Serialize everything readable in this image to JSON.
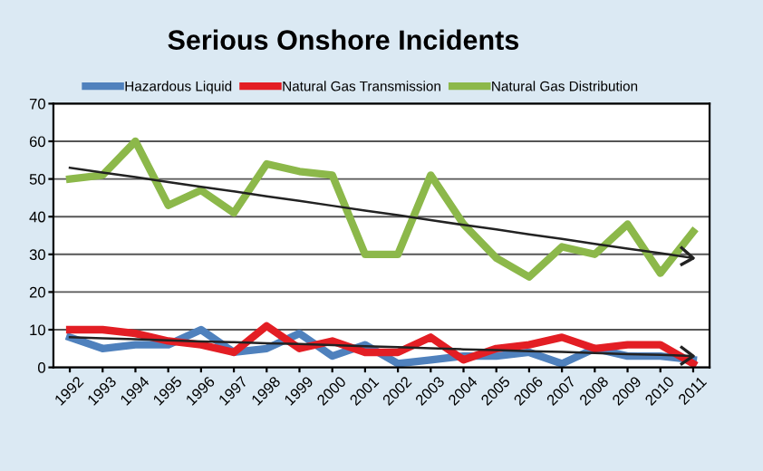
{
  "chart_data": {
    "type": "line",
    "title": "Serious Onshore Incidents",
    "categories": [
      "1992",
      "1993",
      "1994",
      "1995",
      "1996",
      "1997",
      "1998",
      "1999",
      "2000",
      "2001",
      "2002",
      "2003",
      "2004",
      "2005",
      "2006",
      "2007",
      "2008",
      "2009",
      "2010",
      "2011"
    ],
    "series": [
      {
        "name": "Hazardous Liquid",
        "color": "#4f81bd",
        "values": [
          8,
          5,
          6,
          6,
          10,
          4,
          5,
          9,
          3,
          6,
          1,
          2,
          3,
          3,
          4,
          1,
          5,
          3,
          3,
          2
        ]
      },
      {
        "name": "Natural Gas Transmission",
        "color": "#e31e24",
        "values": [
          10,
          10,
          9,
          7,
          6,
          4,
          11,
          5,
          7,
          4,
          4,
          8,
          2,
          5,
          6,
          8,
          5,
          6,
          6,
          1
        ]
      },
      {
        "name": "Natural Gas Distribution",
        "color": "#8cb84a",
        "values": [
          50,
          51,
          60,
          43,
          47,
          41,
          54,
          52,
          51,
          30,
          30,
          51,
          38,
          29,
          24,
          32,
          30,
          38,
          25,
          36
        ]
      },
      {
        "type": "line",
        "color": "#222222",
        "values": [
          53,
          51.7,
          50.5,
          49.2,
          47.9,
          46.7,
          45.4,
          44.2,
          42.9,
          41.6,
          40.4,
          39.1,
          37.8,
          36.6,
          35.3,
          34.1,
          32.8,
          31.5,
          30.3,
          29
        ]
      },
      {
        "type": "line",
        "color": "#222222",
        "values": [
          8,
          7.7,
          7.5,
          7.2,
          6.9,
          6.7,
          6.4,
          6.2,
          5.9,
          5.6,
          5.4,
          5.1,
          4.8,
          4.6,
          4.3,
          4.1,
          3.8,
          3.5,
          3.3,
          3
        ]
      }
    ],
    "ylim": [
      0,
      70
    ],
    "yticks": [
      0,
      10,
      20,
      30,
      40,
      50,
      60,
      70
    ],
    "grid": "y",
    "legend": "top"
  }
}
